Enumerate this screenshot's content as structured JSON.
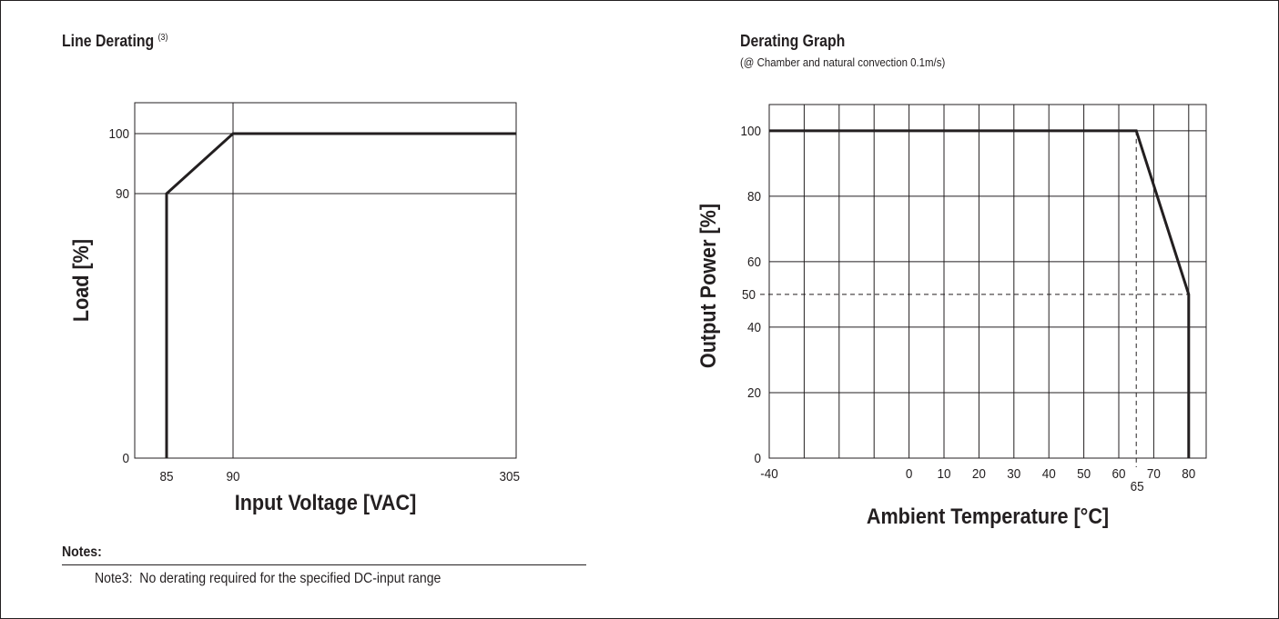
{
  "notes": {
    "heading": "Notes:",
    "items": [
      {
        "label": "Note3:",
        "text": "No derating required for the specified DC-input range"
      }
    ]
  },
  "chart_data": [
    {
      "type": "line",
      "title": "Line Derating",
      "title_superscript": "(3)",
      "subtitle": "",
      "xlabel": "Input Voltage [VAC]",
      "ylabel": "Load [%]",
      "xlim": [
        82,
        305
      ],
      "ylim": [
        0,
        105
      ],
      "xticks": [
        85,
        90,
        305
      ],
      "yticks": [
        0,
        90,
        100
      ],
      "grid": {
        "vertical": [
          90
        ],
        "horizontal": [
          90,
          100
        ]
      },
      "series": [
        {
          "x": [
            85,
            85,
            90,
            305
          ],
          "y": [
            0,
            90,
            100,
            100
          ]
        }
      ]
    },
    {
      "type": "line",
      "title": "Derating Graph",
      "subtitle": "(@ Chamber and natural convection 0.1m/s)",
      "xlabel": "Ambient Temperature [°C]",
      "ylabel": "Output Power [%]",
      "xlim": [
        -40,
        85
      ],
      "ylim": [
        0,
        108
      ],
      "xticks": [
        -40,
        0,
        10,
        20,
        30,
        40,
        50,
        60,
        70,
        80
      ],
      "yticks": [
        0,
        20,
        40,
        60,
        80,
        100
      ],
      "grid": {
        "vertical": [
          -30,
          -20,
          -10,
          0,
          10,
          20,
          30,
          40,
          50,
          60,
          70,
          80
        ],
        "horizontal": [
          20,
          40,
          60,
          80,
          100
        ]
      },
      "reference_lines": [
        {
          "axis": "x",
          "value": 65,
          "label": "65",
          "to_y": 100
        },
        {
          "axis": "y",
          "value": 50,
          "label": "50",
          "to_x": 80
        }
      ],
      "series": [
        {
          "x": [
            -40,
            65,
            80,
            80
          ],
          "y": [
            100,
            100,
            50,
            0
          ]
        }
      ]
    }
  ]
}
